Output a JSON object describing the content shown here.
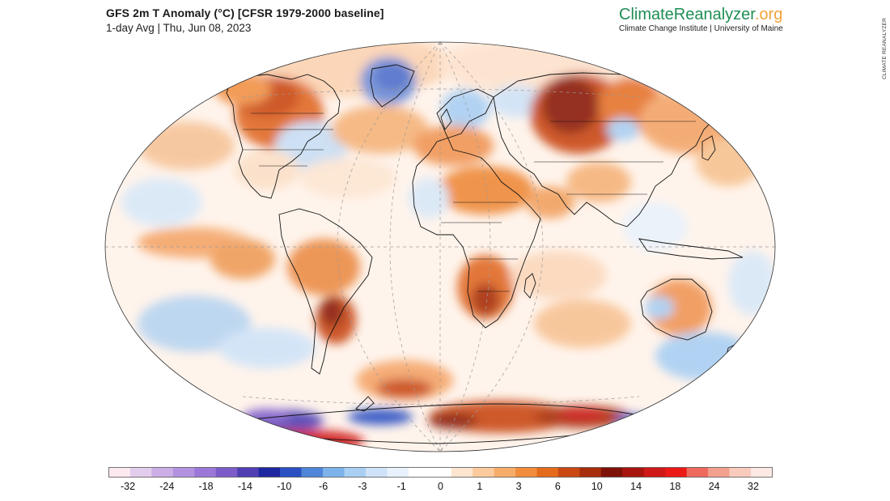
{
  "header": {
    "title": "GFS 2m T Anomaly (°C) [CFSR 1979-2000 baseline]",
    "subtitle": "1-day Avg | Thu, Jun 08, 2023"
  },
  "brand": {
    "name_main": "ClimateReanalyzer",
    "name_suffix": ".org",
    "tagline": "Climate Change Institute | University of Maine",
    "side_credit": "CLIMATE REANALYZER",
    "color_main": "#1f8e55",
    "color_suffix": "#f4a23a"
  },
  "legend": {
    "tick_labels": [
      "-32",
      "-24",
      "-18",
      "-14",
      "-10",
      "-6",
      "-3",
      "-1",
      "0",
      "1",
      "3",
      "6",
      "10",
      "14",
      "18",
      "24",
      "32"
    ],
    "colors": [
      "#fbe8f0",
      "#e3cdec",
      "#ccaee6",
      "#b393e0",
      "#9b78d8",
      "#7c5cc9",
      "#4f3fb3",
      "#1f27a0",
      "#2a50c2",
      "#4f86d8",
      "#7db3ea",
      "#a9cff3",
      "#cfe3f8",
      "#e8f2fc",
      "#ffffff",
      "#ffffff",
      "#fde5cf",
      "#fbcb9e",
      "#f7ad6a",
      "#f18d3d",
      "#e46b1c",
      "#c94812",
      "#a72d0b",
      "#7e1208",
      "#a8150f",
      "#cf1818",
      "#ec1a16",
      "#ee6a5d",
      "#f3a08e",
      "#f8cbbd",
      "#fde9e4"
    ]
  }
}
